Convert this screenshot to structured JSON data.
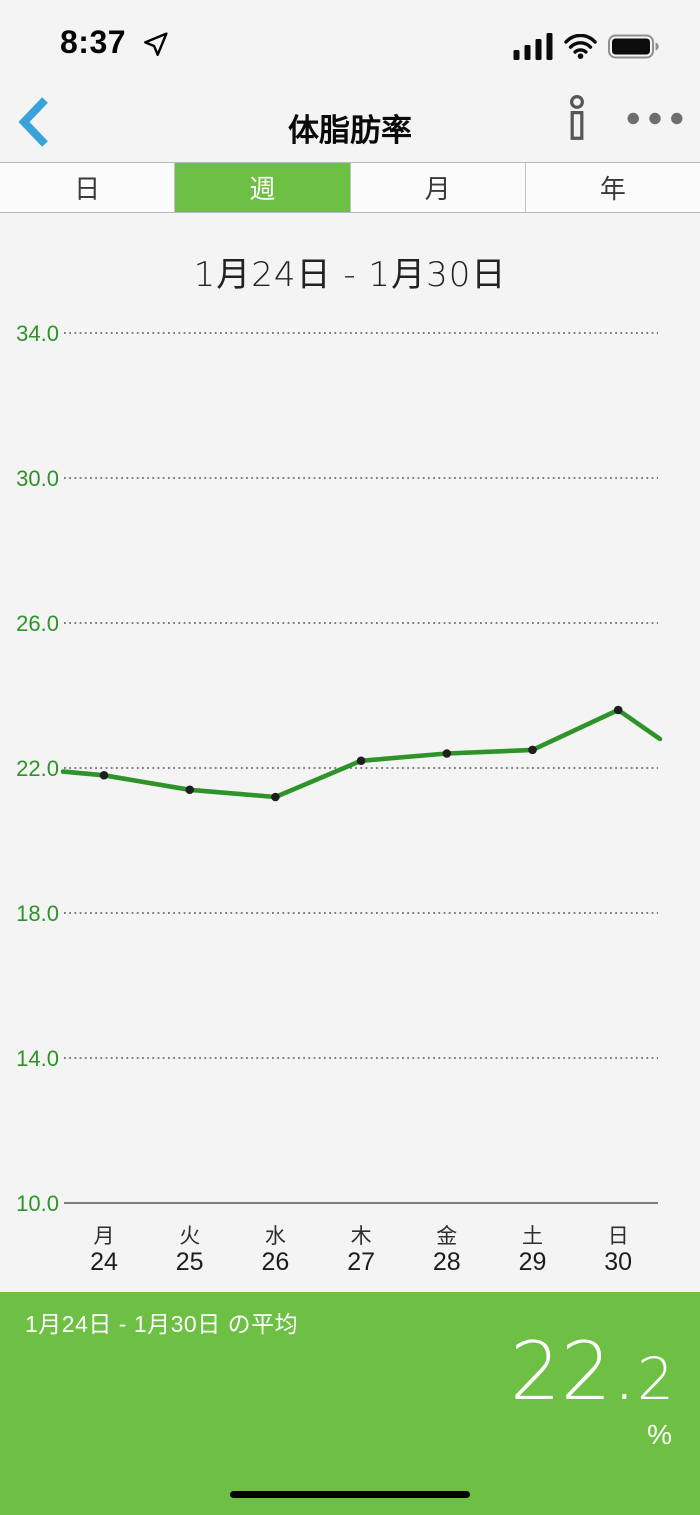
{
  "status_bar": {
    "time": "8:37",
    "location_icon": "location-arrow",
    "signal_icon": "cellular-signal-4-bars",
    "wifi_icon": "wifi",
    "battery_icon": "battery-full"
  },
  "nav": {
    "title": "体脂肪率",
    "back_icon": "chevron-left",
    "info_icon": "info",
    "more_icon": "ellipsis"
  },
  "segmented": {
    "selected_index": 1,
    "options": [
      {
        "key": "day",
        "label": "日"
      },
      {
        "key": "week",
        "label": "週"
      },
      {
        "key": "month",
        "label": "月"
      },
      {
        "key": "year",
        "label": "年"
      }
    ]
  },
  "chart_data": {
    "type": "line",
    "title": "1月24日 - 1月30日",
    "categories": [
      {
        "weekday": "月",
        "date": "24"
      },
      {
        "weekday": "火",
        "date": "25"
      },
      {
        "weekday": "水",
        "date": "26"
      },
      {
        "weekday": "木",
        "date": "27"
      },
      {
        "weekday": "金",
        "date": "28"
      },
      {
        "weekday": "土",
        "date": "29"
      },
      {
        "weekday": "日",
        "date": "30"
      }
    ],
    "values": [
      21.8,
      21.4,
      21.2,
      22.2,
      22.4,
      22.5,
      23.6
    ],
    "lead_in_value": 21.9,
    "lead_out_value": 22.8,
    "y_ticks": [
      34.0,
      30.0,
      26.0,
      22.0,
      18.0,
      14.0,
      10.0
    ],
    "ylim": [
      10,
      37.3
    ],
    "grid": "dotted horizontal lines, solid bottom baseline",
    "legend": "none"
  },
  "summary": {
    "label": "1月24日 - 1月30日 の平均",
    "value": "22.2",
    "value_whole": "22.",
    "value_fraction": "2",
    "unit": "%"
  },
  "colors": {
    "accent_green": "#6dc044",
    "chart_line_green": "#2e9328",
    "tick_label_green": "#2e9328",
    "link_blue": "#38a2d9",
    "background": "#f4f4f4"
  }
}
